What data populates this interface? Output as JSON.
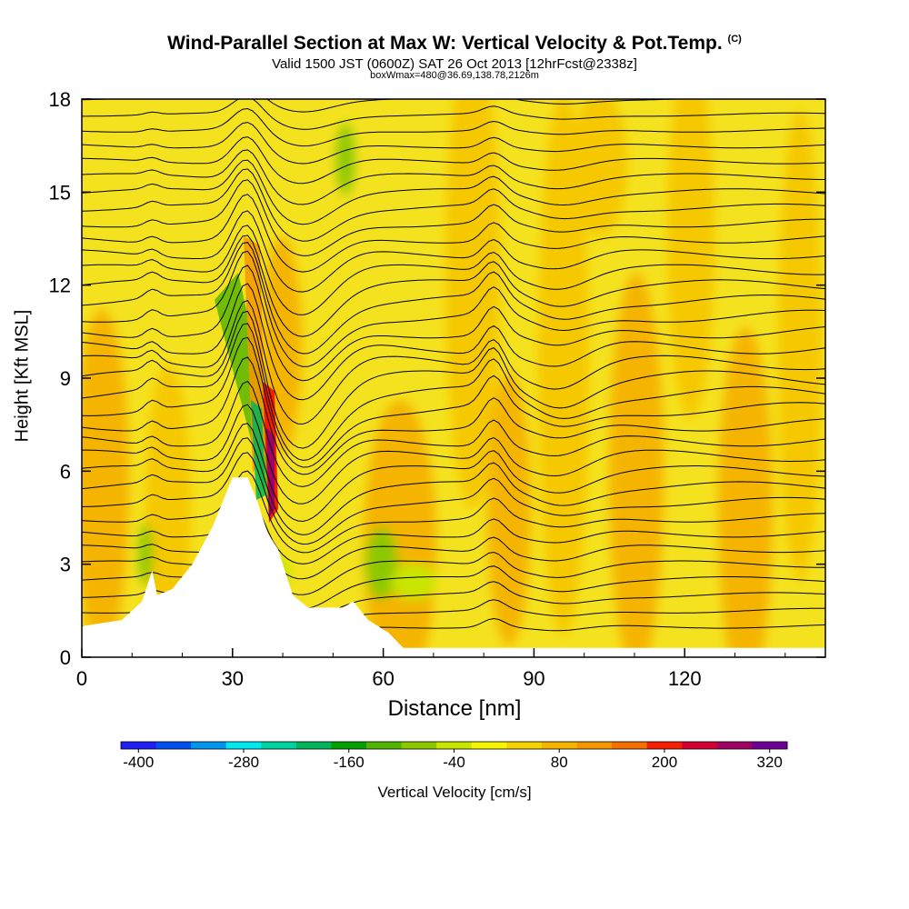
{
  "header": {
    "title": "Wind-Parallel Section at Max W: Vertical Velocity & Pot.Temp.",
    "title_mark": "(C)",
    "subtitle": "Valid 1500 JST (0600Z) SAT 26 Oct 2013 [12hrFcst@2338z]",
    "subtitle2": "boxWmax=480@36.69,138.78,2126m"
  },
  "chart_data": {
    "type": "heatmap",
    "xlabel": "Distance [nm]",
    "ylabel": "Height [Kft MSL]",
    "xlim": [
      0,
      148
    ],
    "ylim": [
      0,
      18
    ],
    "xticks": [
      0,
      30,
      60,
      90,
      120
    ],
    "yticks": [
      0,
      3,
      6,
      9,
      12,
      15,
      18
    ],
    "colorbar": {
      "label": "Vertical Velocity [cm/s]",
      "ticks": [
        -400,
        -280,
        -160,
        -40,
        80,
        200,
        320
      ],
      "colors": [
        "#1e1ef5",
        "#0050f0",
        "#0096f0",
        "#00e8f0",
        "#00d2a0",
        "#00b45a",
        "#00a000",
        "#50b400",
        "#8cc800",
        "#c8e600",
        "#f5f500",
        "#f5d200",
        "#f5b400",
        "#f59600",
        "#f56e00",
        "#f51e00",
        "#d20032",
        "#a00064",
        "#6e0096"
      ]
    },
    "terrain_kft": [
      [
        0,
        1
      ],
      [
        8,
        1.2
      ],
      [
        12,
        1.8
      ],
      [
        14,
        2.8
      ],
      [
        15,
        2
      ],
      [
        18,
        2.2
      ],
      [
        22,
        3
      ],
      [
        26,
        4.2
      ],
      [
        30,
        5.8
      ],
      [
        33,
        5.8
      ],
      [
        35,
        5
      ],
      [
        37,
        4
      ],
      [
        39,
        3.5
      ],
      [
        42,
        2
      ],
      [
        45,
        1.6
      ],
      [
        52,
        1.6
      ],
      [
        54,
        1.8
      ],
      [
        57,
        1.2
      ],
      [
        61,
        0.8
      ],
      [
        64,
        0.3
      ],
      [
        148,
        0.3
      ]
    ],
    "max_w_location_nm": 38
  }
}
